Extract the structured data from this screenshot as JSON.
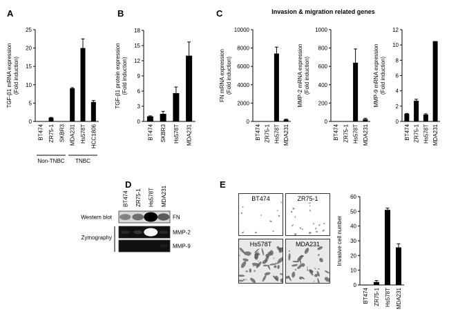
{
  "panels": {
    "A": "A",
    "B": "B",
    "C": "C",
    "D": "D",
    "E": "E"
  },
  "panel_c_title": "Invasion & migration related genes",
  "chart_data": [
    {
      "id": "A",
      "type": "bar",
      "categories": [
        "BT474",
        "ZR75-1",
        "SKBR3",
        "MDA231",
        "Hs578T",
        "HCC1806"
      ],
      "values": [
        0.1,
        1.0,
        0.1,
        9.0,
        20.0,
        5.3
      ],
      "errors": [
        0,
        0.1,
        0,
        0.2,
        2.5,
        0.4
      ],
      "ylabel": [
        "TGF-β1 mRNA expression",
        "(Fold induction)"
      ],
      "ylim": [
        0,
        25
      ],
      "yticks": [
        0,
        5,
        10,
        15,
        20,
        25
      ],
      "groups": [
        {
          "label": "Non-TNBC",
          "from": 0,
          "to": 2
        },
        {
          "label": "TNBC",
          "from": 3,
          "to": 5
        }
      ]
    },
    {
      "id": "B",
      "type": "bar",
      "categories": [
        "BT474",
        "SKBR3",
        "Hs578T",
        "MDA231"
      ],
      "values": [
        1.0,
        1.5,
        5.6,
        13.0
      ],
      "errors": [
        0.1,
        0.5,
        1.2,
        2.7
      ],
      "ylabel": [
        "TGF-β1 protein expression",
        "(Fold induction)"
      ],
      "ylim": [
        0,
        18
      ],
      "yticks": [
        0,
        3,
        6,
        9,
        12,
        15,
        18
      ]
    },
    {
      "id": "C1",
      "type": "bar",
      "categories": [
        "BT474",
        "ZR75-1",
        "Hs578T",
        "MDA231"
      ],
      "values": [
        20,
        30,
        7400,
        200
      ],
      "errors": [
        0,
        0,
        700,
        50
      ],
      "ylabel": [
        "FN mRNA expression",
        "(Fold induction)"
      ],
      "ylim": [
        0,
        10000
      ],
      "yticks": [
        0,
        2000,
        4000,
        6000,
        8000,
        10000
      ]
    },
    {
      "id": "C2",
      "type": "bar",
      "categories": [
        "BT474",
        "ZR75-1",
        "Hs578T",
        "MDA231"
      ],
      "values": [
        2,
        2,
        640,
        25
      ],
      "errors": [
        0,
        0,
        150,
        10
      ],
      "ylabel": [
        "MMP-2 mRNA expression",
        "(Fold induction)"
      ],
      "ylim": [
        0,
        1000
      ],
      "yticks": [
        0,
        200,
        400,
        600,
        800,
        1000
      ]
    },
    {
      "id": "C3",
      "type": "bar",
      "categories": [
        "BT474",
        "ZR75-1",
        "Hs578T",
        "MDA231"
      ],
      "values": [
        1.0,
        2.7,
        0.9,
        10.5
      ],
      "errors": [
        0.05,
        0.2,
        0.1,
        0
      ],
      "ylabel": [
        "MMP-9 mRNA expression",
        "(Fold induction)"
      ],
      "ylim": [
        0,
        12
      ],
      "yticks": [
        0,
        2,
        4,
        6,
        8,
        10,
        12
      ]
    },
    {
      "id": "E",
      "type": "bar",
      "categories": [
        "BT474",
        "ZR75-1",
        "Hs578T",
        "MDA231"
      ],
      "values": [
        0,
        2,
        51,
        25.5
      ],
      "errors": [
        0,
        1,
        1.2,
        2.5
      ],
      "ylabel": [
        "Invasive cell number"
      ],
      "ylim": [
        0,
        60
      ],
      "yticks": [
        0,
        10,
        20,
        30,
        40,
        50,
        60
      ]
    }
  ],
  "blot": {
    "columns": [
      "BT474",
      "ZR75-1",
      "Hs578T",
      "MDA231"
    ],
    "western_label": "Western blot",
    "zymo_label": "Zymography",
    "bands": [
      {
        "name": "FN",
        "intensity": [
          0.35,
          0.45,
          1.0,
          0.55
        ]
      },
      {
        "name": "MMP-2",
        "intensity": [
          0.1,
          0.15,
          1.0,
          0.1
        ]
      },
      {
        "name": "MMP-9",
        "intensity": [
          0.0,
          0.0,
          0.0,
          0.05
        ]
      }
    ]
  },
  "micrographs": [
    {
      "label": "BT474",
      "density": 0.05
    },
    {
      "label": "ZR75-1",
      "density": 0.25
    },
    {
      "label": "Hs578T",
      "density": 1.0
    },
    {
      "label": "MDA231",
      "density": 0.55
    }
  ]
}
